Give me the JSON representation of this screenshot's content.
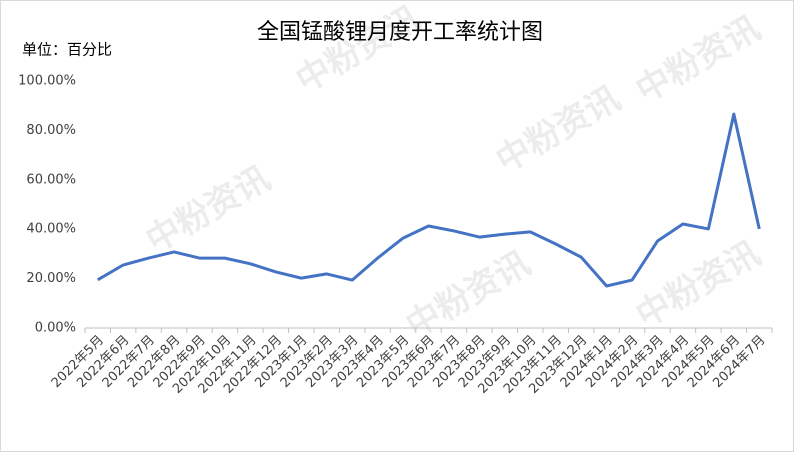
{
  "chart_data": {
    "type": "line",
    "title": "全国锰酸锂月度开工率统计图",
    "unit_label": "单位：百分比",
    "watermark": "中粉资讯",
    "categories": [
      "2022年5月",
      "2022年6月",
      "2022年7月",
      "2022年8月",
      "2022年9月",
      "2022年10月",
      "2022年11月",
      "2022年12月",
      "2023年1月",
      "2023年2月",
      "2023年3月",
      "2023年4月",
      "2023年5月",
      "2023年6月",
      "2023年7月",
      "2023年8月",
      "2023年9月",
      "2023年10月",
      "2023年11月",
      "2023年12月",
      "2024年1月",
      "2024年2月",
      "2024年3月",
      "2024年4月",
      "2024年5月",
      "2024年6月",
      "2024年7月"
    ],
    "series": [
      {
        "color": "#4472c4",
        "values": [
          19.5,
          25.5,
          28.3,
          30.8,
          28.3,
          28.3,
          26,
          22.7,
          20.2,
          21.9,
          19.4,
          28.3,
          36.4,
          41.3,
          39.3,
          36.8,
          38,
          38.9,
          34,
          28.7,
          17,
          19.4,
          35.2,
          42.1,
          40.1,
          86.6,
          40.1
        ]
      }
    ],
    "ylim": [
      0,
      100
    ],
    "yticks": [
      {
        "value": 0,
        "label": "0.00%"
      },
      {
        "value": 20,
        "label": "20.00%"
      },
      {
        "value": 40,
        "label": "40.00%"
      },
      {
        "value": 60,
        "label": "60.00%"
      },
      {
        "value": 80,
        "label": "80.00%"
      },
      {
        "value": 100,
        "label": "100.00%"
      }
    ],
    "grid": false
  }
}
